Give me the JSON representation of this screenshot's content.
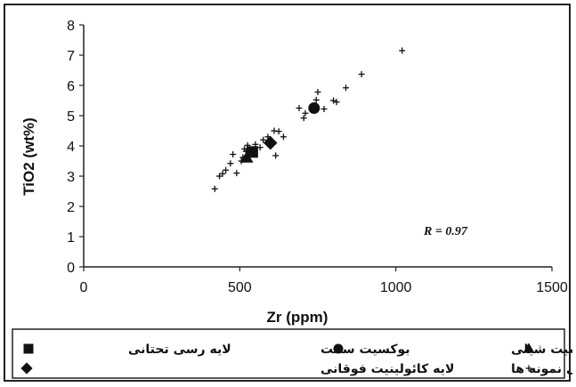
{
  "chart_data": {
    "type": "scatter",
    "title": "",
    "xlabel": "Zr (ppm)",
    "ylabel": "TiO2 (wt%)",
    "xlim": [
      0,
      1500
    ],
    "ylim": [
      0,
      8
    ],
    "x_ticks": [
      0,
      500,
      1000,
      1500
    ],
    "y_ticks": [
      0,
      1,
      2,
      3,
      4,
      5,
      6,
      7,
      8
    ],
    "grid": false,
    "annotation": "R = 0.97",
    "legend_position": "bottom",
    "series": [
      {
        "name": "تمامی نمونه ها",
        "marker": "plus",
        "color": "#111111",
        "points": [
          [
            420,
            2.58
          ],
          [
            435,
            3.0
          ],
          [
            445,
            3.08
          ],
          [
            455,
            3.2
          ],
          [
            470,
            3.42
          ],
          [
            478,
            3.72
          ],
          [
            490,
            3.1
          ],
          [
            505,
            3.5
          ],
          [
            510,
            3.62
          ],
          [
            515,
            3.9
          ],
          [
            520,
            3.82
          ],
          [
            525,
            4.02
          ],
          [
            535,
            3.8
          ],
          [
            545,
            3.88
          ],
          [
            550,
            4.05
          ],
          [
            565,
            3.95
          ],
          [
            575,
            4.2
          ],
          [
            590,
            4.3
          ],
          [
            605,
            4.05
          ],
          [
            610,
            4.5
          ],
          [
            615,
            3.68
          ],
          [
            625,
            4.48
          ],
          [
            640,
            4.3
          ],
          [
            690,
            5.25
          ],
          [
            705,
            4.92
          ],
          [
            710,
            5.08
          ],
          [
            745,
            5.52
          ],
          [
            750,
            5.78
          ],
          [
            770,
            5.22
          ],
          [
            800,
            5.5
          ],
          [
            810,
            5.45
          ],
          [
            840,
            5.92
          ],
          [
            890,
            6.37
          ],
          [
            1020,
            7.15
          ]
        ]
      },
      {
        "name": "لایه رسی تحتانی",
        "marker": "square",
        "color": "#111111",
        "points": [
          [
            540,
            3.8
          ]
        ]
      },
      {
        "name": "بوکسیت سخت",
        "marker": "circle",
        "color": "#111111",
        "points": [
          [
            738,
            5.25
          ]
        ]
      },
      {
        "name": "بوکسیت شیلی",
        "marker": "triangle",
        "color": "#111111",
        "points": [
          [
            522,
            3.6
          ]
        ]
      },
      {
        "name": "لایه کائولینیت فوقانی",
        "marker": "diamond",
        "color": "#111111",
        "points": [
          [
            598,
            4.1
          ]
        ]
      }
    ]
  },
  "legend": {
    "row1": [
      {
        "label": "بوکسیت شیلی",
        "marker": "triangle"
      },
      {
        "label": "بوکسیت سخت",
        "marker": "circle"
      },
      {
        "label": "لایه رسی تحتانی",
        "marker": "square"
      }
    ],
    "row2": [
      {
        "label": "تمامی نمونه ها",
        "marker": "plus"
      },
      {
        "label": "لایه کائولینیت فوقانی",
        "marker": "diamond"
      }
    ]
  }
}
